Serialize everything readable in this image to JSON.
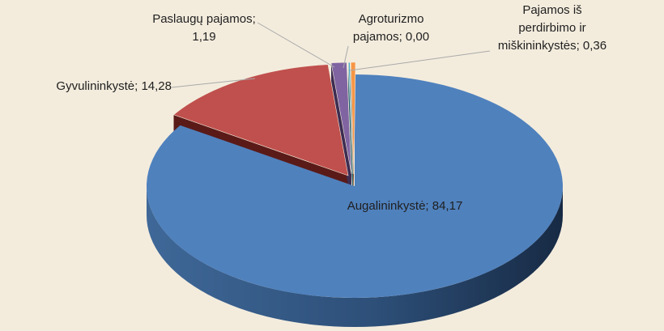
{
  "chart_data": {
    "type": "pie",
    "style": "3d",
    "title": "",
    "slices": [
      {
        "name": "Augalininkystė",
        "value": 84.17,
        "label": [
          "Augalininkystė; 84,17"
        ],
        "color": "#4f81bd",
        "exploded": false
      },
      {
        "name": "Gyvulininkystė",
        "value": 14.28,
        "label": [
          "Gyvulininkystė; 14,28"
        ],
        "color": "#c0504d",
        "exploded": true
      },
      {
        "name": "Paslaugų pajamos",
        "value": 1.19,
        "label": [
          "Paslaugų pajamos;",
          "1,19"
        ],
        "color": "#8064a2",
        "exploded": true
      },
      {
        "name": "Agroturizmo pajamos",
        "value": 0.0,
        "label": [
          "Agroturizmo",
          "pajamos; 0,00"
        ],
        "color": "#4bacc6",
        "exploded": true
      },
      {
        "name": "Pajamos iš perdirbimo ir miškininkystės",
        "value": 0.36,
        "label": [
          "Pajamos iš",
          "perdirbimo ir",
          "miškininkystės; 0,36"
        ],
        "color": "#f79646",
        "exploded": true
      }
    ]
  }
}
